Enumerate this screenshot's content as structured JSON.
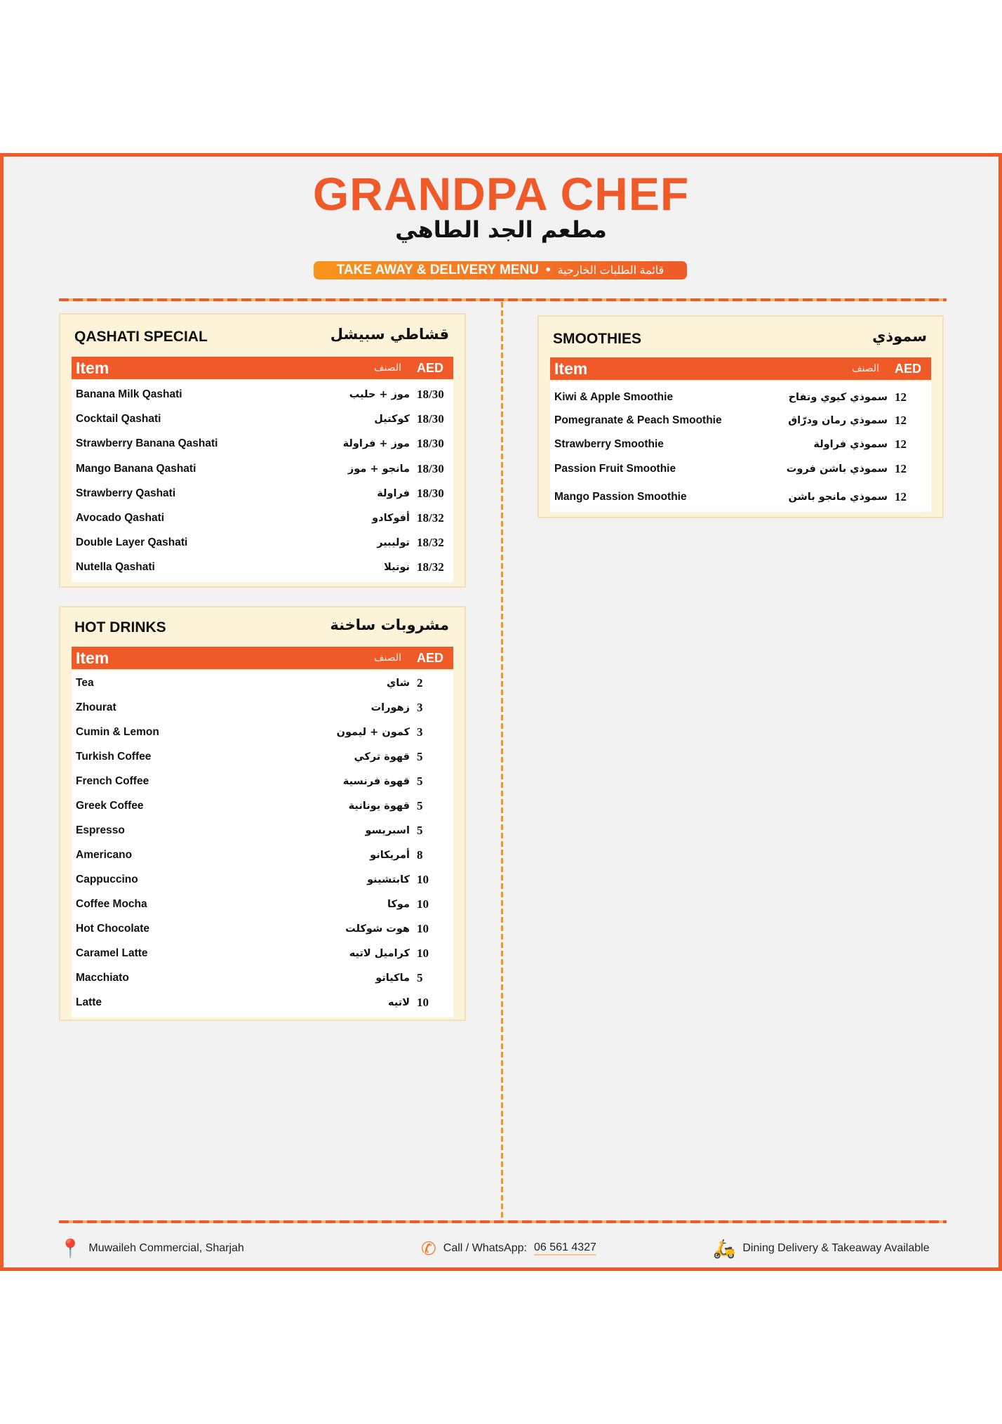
{
  "brand": {
    "name": "GRANDPA CHEF",
    "name_ar": "مطعم الجد الطاهي",
    "tagline": "TAKE AWAY & DELIVERY MENU",
    "tagline_sep": "•",
    "tagline_ar": "قائمة الطلبات الخارجية"
  },
  "colors": {
    "accent": "#f05a28",
    "card": "#fdf3d9"
  },
  "table_header": {
    "item": "Item",
    "item_ar": "الصنف",
    "currency": "AED"
  },
  "qashati": {
    "title": "QASHATI SPECIAL",
    "title_ar": "قشاطي سبيشل",
    "items": [
      {
        "en": "Banana Milk Qashati",
        "ar": "موز + حليب",
        "price": "18/30"
      },
      {
        "en": "Cocktail Qashati",
        "ar": "كوكتيل",
        "price": "18/30"
      },
      {
        "en": "Strawberry Banana Qashati",
        "ar": "موز + فراولة",
        "price": "18/30"
      },
      {
        "en": "Mango Banana Qashati",
        "ar": "مانجو + موز",
        "price": "18/30"
      },
      {
        "en": "Strawberry Qashati",
        "ar": "فراولة",
        "price": "18/30"
      },
      {
        "en": "Avocado Qashati",
        "ar": "أفوكادو",
        "price": "18/32"
      },
      {
        "en": "Double Layer Qashati",
        "ar": "توليبير",
        "price": "18/32"
      },
      {
        "en": "Nutella Qashati",
        "ar": "نوتيلا",
        "price": "18/32"
      }
    ]
  },
  "hot_drinks": {
    "title": "HOT DRINKS",
    "title_ar": "مشروبات ساخنة",
    "items": [
      {
        "en": "Tea",
        "ar": "شاي",
        "price": "2"
      },
      {
        "en": "Zhourat",
        "ar": "زهورات",
        "price": "3"
      },
      {
        "en": "Cumin & Lemon",
        "ar": "كمون + ليمون",
        "price": "3"
      },
      {
        "en": "Turkish Coffee",
        "ar": "قهوة تركي",
        "price": "5"
      },
      {
        "en": "French Coffee",
        "ar": "قهوة فرنسية",
        "price": "5"
      },
      {
        "en": "Greek Coffee",
        "ar": "قهوة يونانية",
        "price": "5"
      },
      {
        "en": "Espresso",
        "ar": "اسبريسو",
        "price": "5"
      },
      {
        "en": "Americano",
        "ar": "أمريكانو",
        "price": "8"
      },
      {
        "en": "Cappuccino",
        "ar": "كابتشينو",
        "price": "10"
      },
      {
        "en": "Coffee Mocha",
        "ar": "موكا",
        "price": "10"
      },
      {
        "en": "Hot Chocolate",
        "ar": "هوت شوكلت",
        "price": "10"
      },
      {
        "en": "Caramel Latte",
        "ar": "كراميل لاتيه",
        "price": "10"
      },
      {
        "en": "Macchiato",
        "ar": "ماكياتو",
        "price": "5"
      },
      {
        "en": "Latte",
        "ar": "لاتيه",
        "price": "10"
      }
    ]
  },
  "smoothies": {
    "title": "SMOOTHIES",
    "title_ar": "سموذي",
    "items": [
      {
        "en": "Kiwi & Apple Smoothie",
        "ar": "سموذي كيوي وتفاح",
        "price": "12"
      },
      {
        "en": "Pomegranate & Peach Smoothie",
        "ar": "سموذي رمان ودرّاق",
        "price": "12"
      },
      {
        "en": "Strawberry Smoothie",
        "ar": "سموذي فراولة",
        "price": "12"
      },
      {
        "en": "Passion Fruit Smoothie",
        "ar": "سموذي باشن فروت",
        "price": "12"
      },
      {
        "en": "Mango Passion Smoothie",
        "ar": "سموذي مانجو باشن",
        "price": "12"
      }
    ]
  },
  "footer": {
    "location": "Muwaileh Commercial, Sharjah",
    "call_label": "Call / WhatsApp:",
    "phone": "06 561 4327",
    "service": "Dining Delivery & Takeaway Available",
    "icons": [
      "location-pin-icon",
      "phone-icon",
      "delivery-scooter-icon"
    ]
  }
}
